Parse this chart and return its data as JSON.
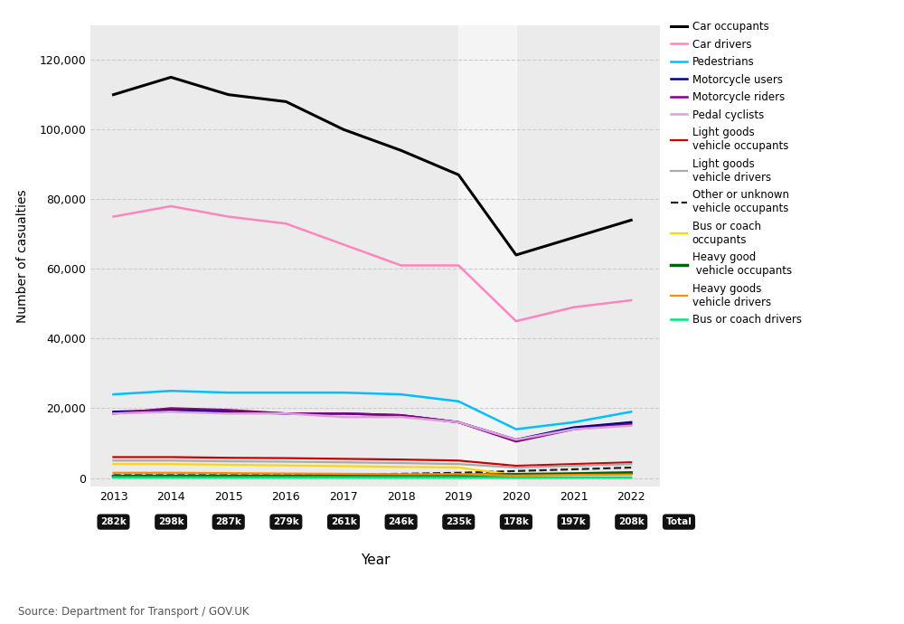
{
  "years": [
    2013,
    2014,
    2015,
    2016,
    2017,
    2018,
    2019,
    2020,
    2021,
    2022
  ],
  "totals": [
    "282k",
    "298k",
    "287k",
    "279k",
    "261k",
    "246k",
    "235k",
    "178k",
    "197k",
    "208k"
  ],
  "series": {
    "Car occupants": {
      "color": "#000000",
      "linestyle": "solid",
      "linewidth": 2.2,
      "values": [
        110000,
        115000,
        110000,
        108000,
        100000,
        94000,
        87000,
        64000,
        69000,
        74000
      ]
    },
    "Car drivers": {
      "color": "#ff85c0",
      "linestyle": "solid",
      "linewidth": 1.8,
      "values": [
        75000,
        78000,
        75000,
        73000,
        67000,
        61000,
        61000,
        45000,
        49000,
        51000
      ]
    },
    "Pedestrians": {
      "color": "#00bfff",
      "linestyle": "solid",
      "linewidth": 1.8,
      "values": [
        24000,
        25000,
        24500,
        24500,
        24500,
        24000,
        22000,
        14000,
        16000,
        19000
      ]
    },
    "Motorcycle users": {
      "color": "#00008b",
      "linestyle": "solid",
      "linewidth": 1.8,
      "values": [
        19000,
        19500,
        19000,
        18500,
        18500,
        18000,
        16000,
        11000,
        14500,
        16000
      ]
    },
    "Motorcycle riders": {
      "color": "#800080",
      "linestyle": "solid",
      "linewidth": 1.8,
      "values": [
        18500,
        20000,
        19500,
        18500,
        18500,
        18000,
        16000,
        10500,
        14000,
        15500
      ]
    },
    "Pedal cyclists": {
      "color": "#dda0dd",
      "linestyle": "solid",
      "linewidth": 1.8,
      "values": [
        18500,
        19000,
        18500,
        18500,
        17500,
        17500,
        16000,
        11000,
        14000,
        15000
      ]
    },
    "Light goods\nvehicle occupants": {
      "color": "#cc0000",
      "linestyle": "solid",
      "linewidth": 1.6,
      "values": [
        6000,
        6000,
        5800,
        5700,
        5500,
        5300,
        5000,
        3500,
        4000,
        4500
      ]
    },
    "Light goods\nvehicle drivers": {
      "color": "#aaaaaa",
      "linestyle": "solid",
      "linewidth": 1.6,
      "values": [
        5000,
        5000,
        4800,
        4700,
        4500,
        4300,
        4000,
        3000,
        3500,
        4000
      ]
    },
    "Other or unknown\nvehicle occupants": {
      "color": "#222222",
      "linestyle": "dashed",
      "linewidth": 1.6,
      "values": [
        800,
        800,
        800,
        800,
        1000,
        1200,
        1500,
        2000,
        2500,
        3000
      ]
    },
    "Bus or coach\noccupants": {
      "color": "#ffd700",
      "linestyle": "solid",
      "linewidth": 1.6,
      "values": [
        4000,
        4000,
        3800,
        3600,
        3400,
        3200,
        3000,
        800,
        1000,
        1500
      ]
    },
    "Heavy good\n vehicle occupants": {
      "color": "#006400",
      "linestyle": "solid",
      "linewidth": 2.5,
      "values": [
        500,
        500,
        500,
        500,
        600,
        700,
        800,
        1000,
        1200,
        1500
      ]
    },
    "Heavy goods\nvehicle drivers": {
      "color": "#ff8c00",
      "linestyle": "solid",
      "linewidth": 1.6,
      "values": [
        1500,
        1500,
        1400,
        1300,
        1200,
        1100,
        1100,
        700,
        900,
        1000
      ]
    },
    "Bus or coach drivers": {
      "color": "#00e676",
      "linestyle": "solid",
      "linewidth": 1.8,
      "values": [
        200,
        200,
        200,
        200,
        200,
        200,
        200,
        100,
        150,
        150
      ]
    }
  },
  "ylabel": "Number of casualties",
  "xlabel": "Year",
  "ylim": [
    -2500,
    130000
  ],
  "yticks": [
    0,
    20000,
    40000,
    60000,
    80000,
    100000,
    120000
  ],
  "ytick_labels": [
    "0",
    "20,000",
    "40,000",
    "60,000",
    "80,000",
    "100,000",
    "120,000"
  ],
  "plot_bg_color": "#ebebeb",
  "source_text": "Source: Department for Transport / GOV.UK",
  "shaded_region": [
    2019,
    2020
  ],
  "legend_order": [
    "Car occupants",
    "Car drivers",
    "Pedestrians",
    "Motorcycle users",
    "Motorcycle riders",
    "Pedal cyclists",
    "Light goods\nvehicle occupants",
    "Light goods\nvehicle drivers",
    "Other or unknown\nvehicle occupants",
    "Bus or coach\noccupants",
    "Heavy good\n vehicle occupants",
    "Heavy goods\nvehicle drivers",
    "Bus or coach drivers"
  ]
}
